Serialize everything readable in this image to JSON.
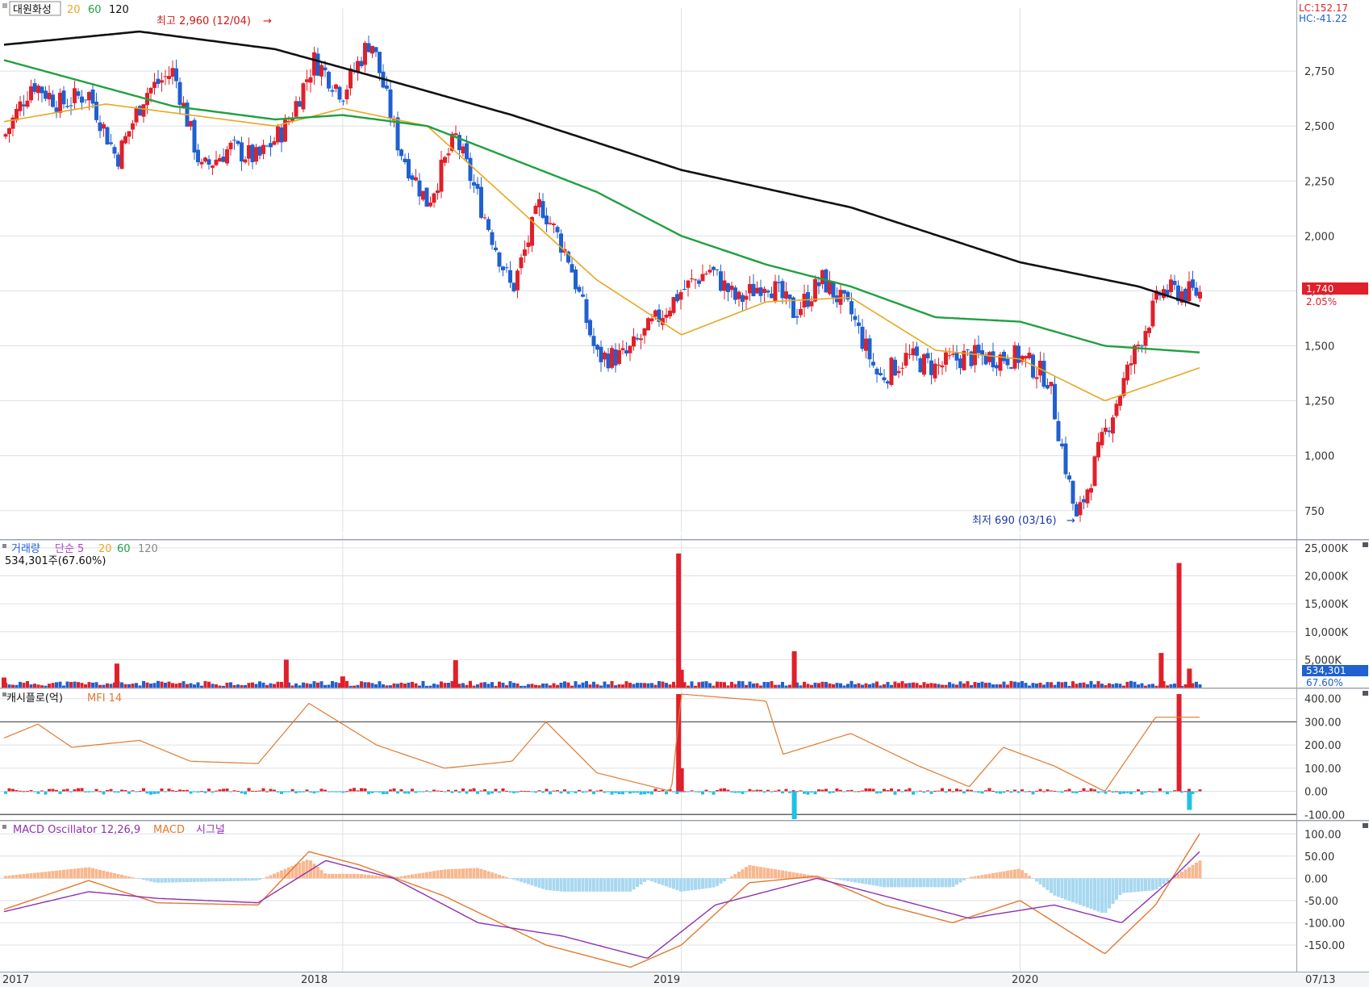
{
  "stock": {
    "name": "대원화성",
    "ma_labels": [
      "20",
      "60",
      "120"
    ],
    "lc": "LC:152.17",
    "hc": "HC:-41.22",
    "high_note": "최고 2,960 (12/04)",
    "low_note": "최저 690 (03/16)",
    "last_price": "1,740",
    "change_pct": "2.05%"
  },
  "volume_panel": {
    "label": "거래량",
    "ma_label": "단순 5",
    "ma_periods": [
      "20",
      "60",
      "120"
    ],
    "current": "534,301주(67.60%)",
    "current_value": "534,301",
    "current_pct": "67.60%"
  },
  "cash_panel": {
    "label": "캐시플로(억)",
    "mfi_label": "MFI 14"
  },
  "macd_panel": {
    "label": "MACD Oscillator 12,26,9",
    "macd_label": "MACD",
    "signal_label": "시그널"
  },
  "x_axis": {
    "labels": [
      "2017",
      "2018",
      "2019",
      "2020"
    ],
    "end_label": "07/13"
  },
  "colors": {
    "up": "#e0202a",
    "down": "#2060d0",
    "ma20": "#e8a820",
    "ma60": "#20a040",
    "ma120": "#111111",
    "mfi": "#e07a30",
    "cash_neg": "#20c0e8",
    "macd_pos": "#f8b890",
    "macd_neg": "#a8d8f0",
    "macd_line": "#e07a30",
    "signal_line": "#9030b0",
    "vol_ma5": "#b040c8"
  },
  "chart_data": [
    {
      "type": "candlestick",
      "title": "대원화성",
      "ylim": [
        650,
        3000
      ],
      "yticks": [
        "750",
        "1,000",
        "1,250",
        "1,500",
        "1,750",
        "2,000",
        "2,250",
        "2,500",
        "2,750"
      ],
      "x_range": [
        "2017-01",
        "2020-07-13"
      ],
      "price_path": [
        [
          "2017-01",
          2450
        ],
        [
          "2017-02",
          2700
        ],
        [
          "2017-03",
          2600
        ],
        [
          "2017-04",
          2650
        ],
        [
          "2017-05",
          2350
        ],
        [
          "2017-06",
          2650
        ],
        [
          "2017-07",
          2750
        ],
        [
          "2017-08",
          2300
        ],
        [
          "2017-09",
          2400
        ],
        [
          "2017-10",
          2350
        ],
        [
          "2017-11",
          2500
        ],
        [
          "2017-12",
          2800
        ],
        [
          "2018-01",
          2650
        ],
        [
          "2018-02",
          2900
        ],
        [
          "2018-03",
          2400
        ],
        [
          "2018-04",
          2150
        ],
        [
          "2018-05",
          2450
        ],
        [
          "2018-06",
          2100
        ],
        [
          "2018-07",
          1750
        ],
        [
          "2018-08",
          2150
        ],
        [
          "2018-09",
          1900
        ],
        [
          "2018-10",
          1450
        ],
        [
          "2018-11",
          1450
        ],
        [
          "2018-12",
          1600
        ],
        [
          "2019-01",
          1750
        ],
        [
          "2019-02",
          1850
        ],
        [
          "2019-03",
          1700
        ],
        [
          "2019-04",
          1800
        ],
        [
          "2019-05",
          1650
        ],
        [
          "2019-06",
          1800
        ],
        [
          "2019-07",
          1650
        ],
        [
          "2019-08",
          1350
        ],
        [
          "2019-09",
          1450
        ],
        [
          "2019-10",
          1400
        ],
        [
          "2019-11",
          1450
        ],
        [
          "2019-12",
          1450
        ],
        [
          "2020-01",
          1450
        ],
        [
          "2020-02",
          1350
        ],
        [
          "2020-03",
          700
        ],
        [
          "2020-04",
          1100
        ],
        [
          "2020-05",
          1450
        ],
        [
          "2020-06",
          1750
        ],
        [
          "2020-07-13",
          1740
        ]
      ],
      "annotations": [
        {
          "text": "최고 2,960 (12/04)",
          "date": "2017-12-04",
          "value": 2960
        },
        {
          "text": "최저 690 (03/16)",
          "date": "2020-03-16",
          "value": 690
        }
      ],
      "series": [
        {
          "name": "20",
          "values": [
            [
              2017.0,
              2520
            ],
            [
              2017.3,
              2600
            ],
            [
              2017.5,
              2560
            ],
            [
              2017.8,
              2500
            ],
            [
              2018.0,
              2580
            ],
            [
              2018.25,
              2500
            ],
            [
              2018.5,
              2150
            ],
            [
              2018.75,
              1800
            ],
            [
              2019.0,
              1550
            ],
            [
              2019.25,
              1700
            ],
            [
              2019.5,
              1720
            ],
            [
              2019.75,
              1480
            ],
            [
              2020.0,
              1440
            ],
            [
              2020.25,
              1250
            ],
            [
              2020.53,
              1400
            ]
          ]
        },
        {
          "name": "60",
          "values": [
            [
              2017.0,
              2800
            ],
            [
              2017.5,
              2590
            ],
            [
              2017.8,
              2530
            ],
            [
              2018.0,
              2550
            ],
            [
              2018.25,
              2500
            ],
            [
              2018.5,
              2350
            ],
            [
              2018.75,
              2200
            ],
            [
              2019.0,
              2000
            ],
            [
              2019.25,
              1870
            ],
            [
              2019.5,
              1770
            ],
            [
              2019.75,
              1630
            ],
            [
              2020.0,
              1610
            ],
            [
              2020.25,
              1500
            ],
            [
              2020.53,
              1470
            ]
          ]
        },
        {
          "name": "120",
          "values": [
            [
              2017.0,
              2870
            ],
            [
              2017.4,
              2930
            ],
            [
              2017.8,
              2850
            ],
            [
              2018.2,
              2680
            ],
            [
              2018.5,
              2550
            ],
            [
              2019.0,
              2300
            ],
            [
              2019.5,
              2130
            ],
            [
              2020.0,
              1880
            ],
            [
              2020.35,
              1770
            ],
            [
              2020.53,
              1680
            ]
          ]
        }
      ],
      "last": {
        "price": 1740,
        "change_pct": 2.05
      }
    },
    {
      "type": "bar",
      "title": "거래량",
      "ylim": [
        0,
        26000
      ],
      "unit": "K",
      "yticks": [
        "5,000K",
        "10,000K",
        "15,000K",
        "20,000K",
        "25,000K"
      ],
      "spikes": [
        {
          "date": "2017-01",
          "value": 1800
        },
        {
          "date": "2017-05",
          "value": 4300
        },
        {
          "date": "2017-11",
          "value": 5000
        },
        {
          "date": "2018-01",
          "value": 2000
        },
        {
          "date": "2018-05",
          "value": 4900
        },
        {
          "date": "2018-12-28",
          "value": 24000
        },
        {
          "date": "2019-01",
          "value": 3200
        },
        {
          "date": "2019-05",
          "value": 6500
        },
        {
          "date": "2020-06",
          "value": 6200
        },
        {
          "date": "2020-06-20",
          "value": 22300
        },
        {
          "date": "2020-07",
          "value": 3400
        }
      ],
      "current": 534301
    },
    {
      "type": "bar+line",
      "title": "캐시플로(억)",
      "ylim": [
        -120,
        420
      ],
      "yticks": [
        "-100.00",
        "0.00",
        "100.00",
        "200.00",
        "300.00",
        "400.00"
      ],
      "series": [
        {
          "name": "MFI 14",
          "values": [
            [
              2017.0,
              230
            ],
            [
              2017.1,
              290
            ],
            [
              2017.2,
              190
            ],
            [
              2017.4,
              220
            ],
            [
              2017.55,
              130
            ],
            [
              2017.75,
              120
            ],
            [
              2017.9,
              380
            ],
            [
              2018.1,
              200
            ],
            [
              2018.3,
              100
            ],
            [
              2018.5,
              130
            ],
            [
              2018.6,
              300
            ],
            [
              2018.75,
              80
            ],
            [
              2018.97,
              0
            ],
            [
              2019.0,
              420
            ],
            [
              2019.25,
              390
            ],
            [
              2019.3,
              160
            ],
            [
              2019.5,
              250
            ],
            [
              2019.7,
              110
            ],
            [
              2019.85,
              20
            ],
            [
              2019.95,
              190
            ],
            [
              2020.1,
              110
            ],
            [
              2020.25,
              0
            ],
            [
              2020.4,
              320
            ],
            [
              2020.53,
              320
            ]
          ]
        }
      ],
      "spikes": [
        {
          "date": "2018-12-28",
          "value": 420
        },
        {
          "date": "2019-01",
          "value": 100
        },
        {
          "date": "2019-05",
          "value": -120
        },
        {
          "date": "2020-06-20",
          "value": 420
        },
        {
          "date": "2020-07",
          "value": -80
        }
      ]
    },
    {
      "type": "bar+line",
      "title": "MACD Oscillator 12,26,9",
      "ylim": [
        -210,
        115
      ],
      "yticks": [
        "-150.00",
        "-100.00",
        "-50.00",
        "0.00",
        "50.00",
        "100.00"
      ],
      "series": [
        {
          "name": "MACD",
          "values": [
            [
              2017.0,
              -70
            ],
            [
              2017.25,
              -5
            ],
            [
              2017.45,
              -55
            ],
            [
              2017.75,
              -60
            ],
            [
              2017.9,
              60
            ],
            [
              2018.05,
              30
            ],
            [
              2018.3,
              -40
            ],
            [
              2018.6,
              -150
            ],
            [
              2018.85,
              -200
            ],
            [
              2019.0,
              -150
            ],
            [
              2019.2,
              -10
            ],
            [
              2019.4,
              5
            ],
            [
              2019.6,
              -60
            ],
            [
              2019.8,
              -100
            ],
            [
              2020.0,
              -50
            ],
            [
              2020.25,
              -170
            ],
            [
              2020.4,
              -60
            ],
            [
              2020.53,
              100
            ]
          ]
        },
        {
          "name": "시그널",
          "values": [
            [
              2017.0,
              -75
            ],
            [
              2017.25,
              -30
            ],
            [
              2017.45,
              -45
            ],
            [
              2017.75,
              -55
            ],
            [
              2017.95,
              40
            ],
            [
              2018.15,
              0
            ],
            [
              2018.4,
              -100
            ],
            [
              2018.65,
              -130
            ],
            [
              2018.9,
              -180
            ],
            [
              2019.1,
              -60
            ],
            [
              2019.4,
              0
            ],
            [
              2019.65,
              -50
            ],
            [
              2019.85,
              -90
            ],
            [
              2020.1,
              -60
            ],
            [
              2020.3,
              -100
            ],
            [
              2020.45,
              0
            ],
            [
              2020.53,
              60
            ]
          ]
        }
      ]
    }
  ]
}
